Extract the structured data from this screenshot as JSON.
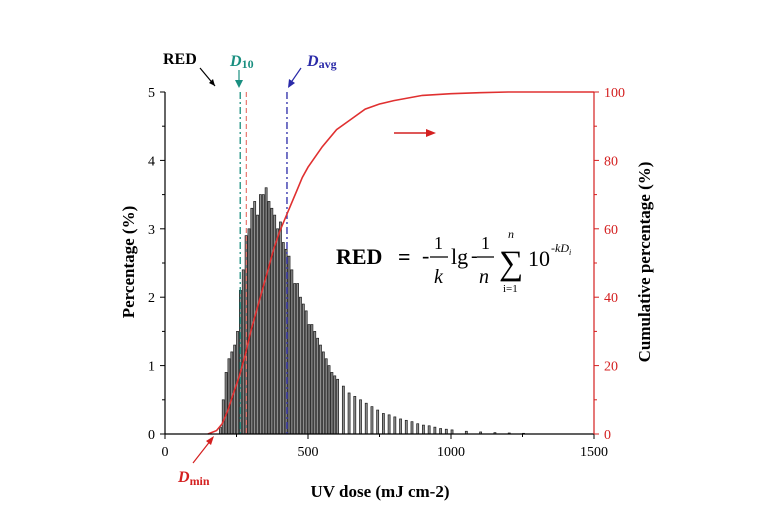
{
  "colors": {
    "axis_left": "#000000",
    "axis_right": "#d42020",
    "bars_fill": "#8f8f8f",
    "bars_stroke": "#1a1a1a",
    "cumulative_line": "#e03030",
    "dmin_line": "#e8776f",
    "d10_line": "#1a8f80",
    "davg_line": "#2a2aa8"
  },
  "chart_data": {
    "type": "bar",
    "xlabel": "UV dose (mJ cm-2)",
    "ylabel_left": "Percentage (%)",
    "ylabel_right": "Cumulative percentage (%)",
    "xlim": [
      0,
      1500
    ],
    "ylim_left": [
      0,
      5
    ],
    "ylim_right": [
      0,
      100
    ],
    "x_ticks": [
      "0",
      "500",
      "1000",
      "1500"
    ],
    "y_left_ticks": [
      "0",
      "1",
      "2",
      "3",
      "4",
      "5"
    ],
    "y_right_ticks": [
      "0",
      "20",
      "40",
      "60",
      "80",
      "100"
    ],
    "histogram": {
      "bin_width": 10,
      "bins_start": [
        190,
        200,
        210,
        220,
        230,
        240,
        250,
        260,
        270,
        280,
        290,
        300,
        310,
        320,
        330,
        340,
        350,
        360,
        370,
        380,
        390,
        400,
        410,
        420,
        430,
        440,
        450,
        460,
        470,
        480,
        490,
        500,
        510,
        520,
        530,
        540,
        550,
        560,
        570,
        580,
        590,
        600,
        620,
        640,
        660,
        680,
        700,
        720,
        740,
        760,
        780,
        800,
        820,
        840,
        860,
        880,
        900,
        920,
        940,
        960,
        980,
        1000,
        1050,
        1100,
        1150,
        1200,
        1250
      ],
      "values": [
        0.1,
        0.5,
        0.9,
        1.1,
        1.2,
        1.3,
        1.5,
        2.1,
        2.4,
        2.9,
        3.0,
        3.3,
        3.4,
        3.2,
        3.5,
        3.5,
        3.6,
        3.4,
        3.3,
        3.2,
        3.0,
        3.1,
        2.8,
        2.7,
        2.6,
        2.4,
        2.2,
        2.2,
        2.0,
        1.9,
        1.8,
        1.6,
        1.6,
        1.5,
        1.4,
        1.3,
        1.2,
        1.1,
        1.0,
        0.9,
        0.85,
        0.8,
        0.7,
        0.6,
        0.55,
        0.5,
        0.45,
        0.4,
        0.35,
        0.3,
        0.28,
        0.25,
        0.22,
        0.2,
        0.18,
        0.15,
        0.13,
        0.12,
        0.1,
        0.08,
        0.07,
        0.06,
        0.04,
        0.03,
        0.02,
        0.015,
        0.01
      ]
    },
    "cumulative": {
      "x": [
        150,
        180,
        200,
        220,
        240,
        260,
        280,
        300,
        320,
        340,
        360,
        380,
        400,
        420,
        440,
        460,
        480,
        500,
        550,
        600,
        650,
        700,
        750,
        800,
        900,
        1000,
        1100,
        1200,
        1300,
        1500
      ],
      "y": [
        0,
        1,
        3,
        7,
        12,
        17,
        23,
        30,
        36,
        42,
        48,
        54,
        59,
        63,
        67,
        71,
        75,
        78,
        84,
        89,
        92,
        95,
        96.5,
        97.5,
        99,
        99.5,
        99.8,
        100,
        100,
        100
      ]
    },
    "markers": [
      {
        "label": "RED",
        "x": 190
      },
      {
        "label": "D10",
        "x": 270
      },
      {
        "label": "Davg",
        "x": 430
      },
      {
        "label": "Dmin",
        "x": 190
      }
    ]
  },
  "annotations": {
    "red": "RED",
    "d10_main": "D",
    "d10_sub": "10",
    "davg_main": "D",
    "davg_sub": "avg",
    "dmin_main": "D",
    "dmin_sub": "min"
  },
  "equation": {
    "lhs": "RED",
    "eq": "=",
    "minus": "-",
    "one_a": "1",
    "k": "k",
    "lg": "lg",
    "one_b": "1",
    "n": "n",
    "sum": "∑",
    "sum_top": "n",
    "sum_bottom": "i=1",
    "ten": "10",
    "exp": "-kD",
    "exp_sub": "i"
  }
}
